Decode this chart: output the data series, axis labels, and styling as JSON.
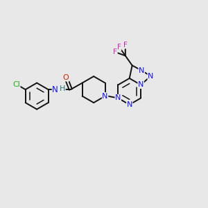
{
  "background_color": "#e8e8e8",
  "bond_color": "#111111",
  "figsize": [
    3.0,
    3.0
  ],
  "dpi": 100,
  "colors": {
    "Cl": "#22aa22",
    "O": "#cc2200",
    "N": "#1111ee",
    "NH_H": "#227777",
    "F": "#cc22aa",
    "C": "#111111"
  },
  "bl": 0.2,
  "lw": 1.4,
  "lw_inner": 1.1,
  "fs": 8.0,
  "xlim": [
    -1.55,
    1.55
  ],
  "ylim": [
    -1.3,
    1.3
  ]
}
